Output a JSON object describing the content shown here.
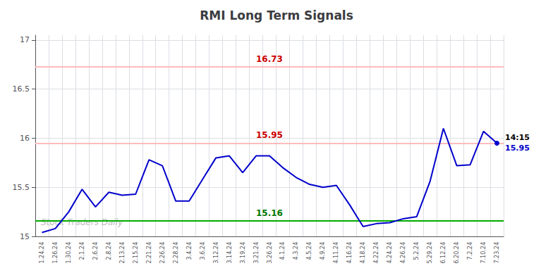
{
  "chart_data": {
    "type": "line",
    "title": "RMI Long Term Signals",
    "categories": [
      "1.24.24",
      "1.26.24",
      "1.30.24",
      "2.1.24",
      "2.6.24",
      "2.8.24",
      "2.13.24",
      "2.15.24",
      "2.21.24",
      "2.26.24",
      "2.28.24",
      "3.4.24",
      "3.6.24",
      "3.12.24",
      "3.14.24",
      "3.19.24",
      "3.21.24",
      "3.26.24",
      "4.1.24",
      "4.3.24",
      "4.5.24",
      "4.9.24",
      "4.11.24",
      "4.16.24",
      "4.18.24",
      "4.22.24",
      "4.24.24",
      "4.26.24",
      "5.2.24",
      "5.29.24",
      "6.12.24",
      "6.20.24",
      "7.2.24",
      "7.10.24",
      "7.23.24"
    ],
    "values": [
      15.04,
      15.08,
      15.25,
      15.48,
      15.3,
      15.45,
      15.42,
      15.43,
      15.78,
      15.72,
      15.36,
      15.36,
      15.58,
      15.8,
      15.82,
      15.65,
      15.82,
      15.82,
      15.7,
      15.6,
      15.53,
      15.5,
      15.52,
      15.32,
      15.1,
      15.13,
      15.14,
      15.18,
      15.2,
      15.56,
      16.1,
      15.72,
      15.73,
      16.07,
      15.95
    ],
    "color": "#0000cc",
    "ylim": [
      15.0,
      17.05
    ],
    "yticks": [
      15.0,
      15.5,
      16.0,
      16.5,
      17.0
    ],
    "grid": true,
    "hlines": [
      {
        "value": 16.73,
        "color": "#ffbbbb",
        "label_color": "#cc0000"
      },
      {
        "value": 15.95,
        "color": "#ffbbbb",
        "label_color": "#cc0000"
      },
      {
        "value": 15.16,
        "color": "#00aa00",
        "label_color": "#007700"
      }
    ],
    "annotations": [
      {
        "text": "14:15",
        "color": "#000000"
      },
      {
        "text": "15.95",
        "color": "#0000cc"
      }
    ],
    "watermark": {
      "text": "Stock Traders Daily",
      "color": "#bbbbbb"
    }
  }
}
